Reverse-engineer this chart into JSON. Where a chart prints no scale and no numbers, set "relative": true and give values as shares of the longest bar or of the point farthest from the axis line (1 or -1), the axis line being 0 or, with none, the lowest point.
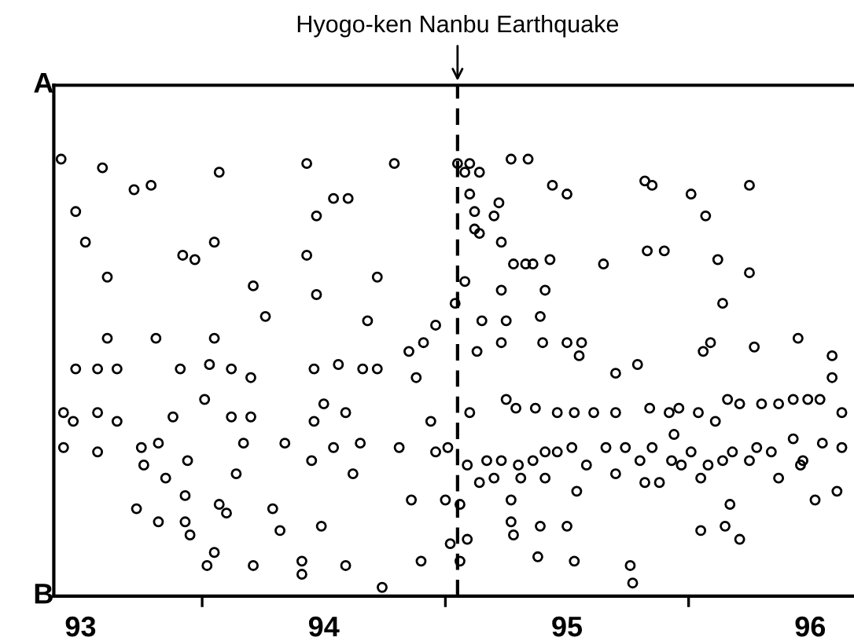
{
  "chart_data": {
    "type": "scatter",
    "marker": "circle",
    "grid": false,
    "relative": true,
    "xlim": [
      92.89,
      96.18
    ],
    "xticks": [
      93,
      {
        "value": 93.5,
        "label": null
      },
      94,
      {
        "value": 94.5,
        "label": null
      },
      95,
      {
        "value": 95.5,
        "label": null
      },
      96
    ],
    "annotations": [
      "A",
      "B"
    ],
    "ref_lines": [
      {
        "axis": "x",
        "value": 94.55,
        "label": "Hyogo-ken Nanbu Earthquake",
        "line_style": "dashed",
        "color": "#000000"
      }
    ],
    "series": [
      {
        "color": "#000000",
        "x": [
          92.92,
          93.09,
          92.98,
          93.02,
          93.11,
          93.22,
          93.29,
          93.42,
          93.47,
          93.55,
          93.57,
          93.11,
          93.31,
          93.55,
          92.98,
          93.07,
          93.15,
          93.41,
          93.53,
          93.62,
          92.93,
          92.97,
          93.07,
          93.15,
          92.93,
          93.07,
          93.38,
          93.51,
          93.62,
          93.7,
          93.7,
          93.96,
          94.0,
          94.06,
          94.16,
          94.22,
          94.09,
          93.93,
          94.04,
          94.1,
          93.97,
          93.93,
          94.29,
          94.22,
          94.18,
          93.97,
          93.71,
          93.76,
          93.25,
          93.26,
          93.32,
          93.35,
          93.44,
          93.43,
          93.23,
          93.32,
          93.43,
          93.45,
          93.57,
          93.6,
          93.79,
          93.82,
          93.99,
          93.52,
          93.55,
          93.71,
          93.91,
          93.91,
          94.09,
          94.24,
          94.36,
          94.4,
          94.12,
          94.04,
          94.15,
          94.31,
          94.46,
          94.44,
          93.95,
          93.84,
          93.96,
          93.67,
          93.64,
          94.41,
          94.35,
          94.46,
          94.38,
          94.55,
          94.6,
          94.58,
          94.64,
          94.6,
          94.62,
          94.62,
          94.7,
          94.72,
          94.77,
          94.84,
          94.94,
          95.0,
          94.58,
          94.64,
          94.73,
          94.78,
          94.83,
          94.93,
          94.73,
          94.86,
          95.15,
          95.32,
          95.35,
          95.4,
          95.33,
          95.51,
          95.57,
          95.75,
          95.62,
          95.75,
          94.91,
          94.54,
          94.75,
          94.89,
          94.65,
          94.73,
          94.63,
          94.9,
          95.06,
          95.0,
          95.05,
          95.29,
          95.59,
          95.56,
          95.64,
          95.77,
          95.2,
          94.79,
          94.6,
          94.75,
          94.87,
          94.96,
          95.03,
          95.11,
          95.2,
          95.34,
          95.42,
          95.46,
          95.54,
          95.66,
          95.71,
          95.8,
          95.87,
          95.93,
          95.99,
          96.04,
          96.09,
          95.95,
          96.09,
          96.13,
          94.51,
          94.59,
          94.67,
          94.73,
          94.8,
          94.86,
          94.91,
          94.96,
          95.02,
          95.08,
          95.16,
          95.24,
          95.3,
          95.35,
          95.43,
          95.47,
          95.51,
          95.58,
          95.64,
          95.68,
          95.75,
          95.78,
          95.84,
          95.93,
          95.97,
          96.05,
          96.13,
          94.56,
          94.64,
          94.7,
          94.81,
          94.91,
          95.04,
          95.2,
          95.32,
          95.38,
          95.55,
          95.67,
          95.87,
          95.96,
          94.5,
          94.52,
          94.56,
          94.59,
          94.77,
          94.77,
          94.78,
          94.89,
          94.88,
          95.0,
          95.03,
          95.26,
          95.27,
          95.55,
          95.65,
          95.71,
          96.02,
          96.11,
          95.44,
          95.61
        ],
        "values": [
          1.0,
          0.98,
          0.88,
          0.81,
          0.73,
          0.93,
          0.94,
          0.78,
          0.77,
          0.81,
          0.97,
          0.59,
          0.59,
          0.59,
          0.52,
          0.52,
          0.52,
          0.52,
          0.53,
          0.52,
          0.42,
          0.4,
          0.42,
          0.4,
          0.34,
          0.33,
          0.41,
          0.45,
          0.41,
          0.41,
          0.5,
          0.52,
          0.44,
          0.53,
          0.52,
          0.52,
          0.42,
          0.99,
          0.91,
          0.91,
          0.87,
          0.78,
          0.99,
          0.73,
          0.63,
          0.69,
          0.71,
          0.64,
          0.34,
          0.3,
          0.35,
          0.27,
          0.31,
          0.23,
          0.2,
          0.17,
          0.17,
          0.14,
          0.21,
          0.19,
          0.2,
          0.15,
          0.16,
          0.07,
          0.1,
          0.07,
          0.05,
          0.08,
          0.07,
          0.02,
          0.22,
          0.08,
          0.28,
          0.34,
          0.35,
          0.34,
          0.33,
          0.4,
          0.31,
          0.35,
          0.4,
          0.35,
          0.28,
          0.58,
          0.56,
          0.62,
          0.5,
          0.99,
          0.99,
          0.97,
          0.97,
          0.92,
          0.88,
          0.84,
          0.87,
          0.9,
          1.0,
          1.0,
          0.94,
          0.92,
          0.72,
          0.83,
          0.81,
          0.76,
          0.76,
          0.77,
          0.7,
          0.76,
          0.76,
          0.95,
          0.94,
          0.79,
          0.79,
          0.92,
          0.87,
          0.94,
          0.77,
          0.74,
          0.7,
          0.67,
          0.63,
          0.64,
          0.63,
          0.58,
          0.56,
          0.58,
          0.58,
          0.58,
          0.55,
          0.53,
          0.58,
          0.56,
          0.67,
          0.57,
          0.51,
          0.43,
          0.42,
          0.45,
          0.43,
          0.42,
          0.42,
          0.42,
          0.42,
          0.43,
          0.42,
          0.43,
          0.42,
          0.45,
          0.44,
          0.44,
          0.44,
          0.45,
          0.45,
          0.45,
          0.55,
          0.59,
          0.5,
          0.42,
          0.34,
          0.3,
          0.31,
          0.31,
          0.3,
          0.31,
          0.33,
          0.33,
          0.34,
          0.3,
          0.34,
          0.34,
          0.31,
          0.34,
          0.31,
          0.3,
          0.33,
          0.3,
          0.31,
          0.33,
          0.31,
          0.34,
          0.33,
          0.36,
          0.31,
          0.35,
          0.34,
          0.21,
          0.26,
          0.27,
          0.27,
          0.27,
          0.24,
          0.28,
          0.26,
          0.26,
          0.27,
          0.21,
          0.27,
          0.3,
          0.22,
          0.12,
          0.08,
          0.13,
          0.22,
          0.17,
          0.14,
          0.16,
          0.09,
          0.16,
          0.08,
          0.07,
          0.03,
          0.15,
          0.16,
          0.13,
          0.22,
          0.24,
          0.37,
          0.4
        ]
      }
    ]
  }
}
